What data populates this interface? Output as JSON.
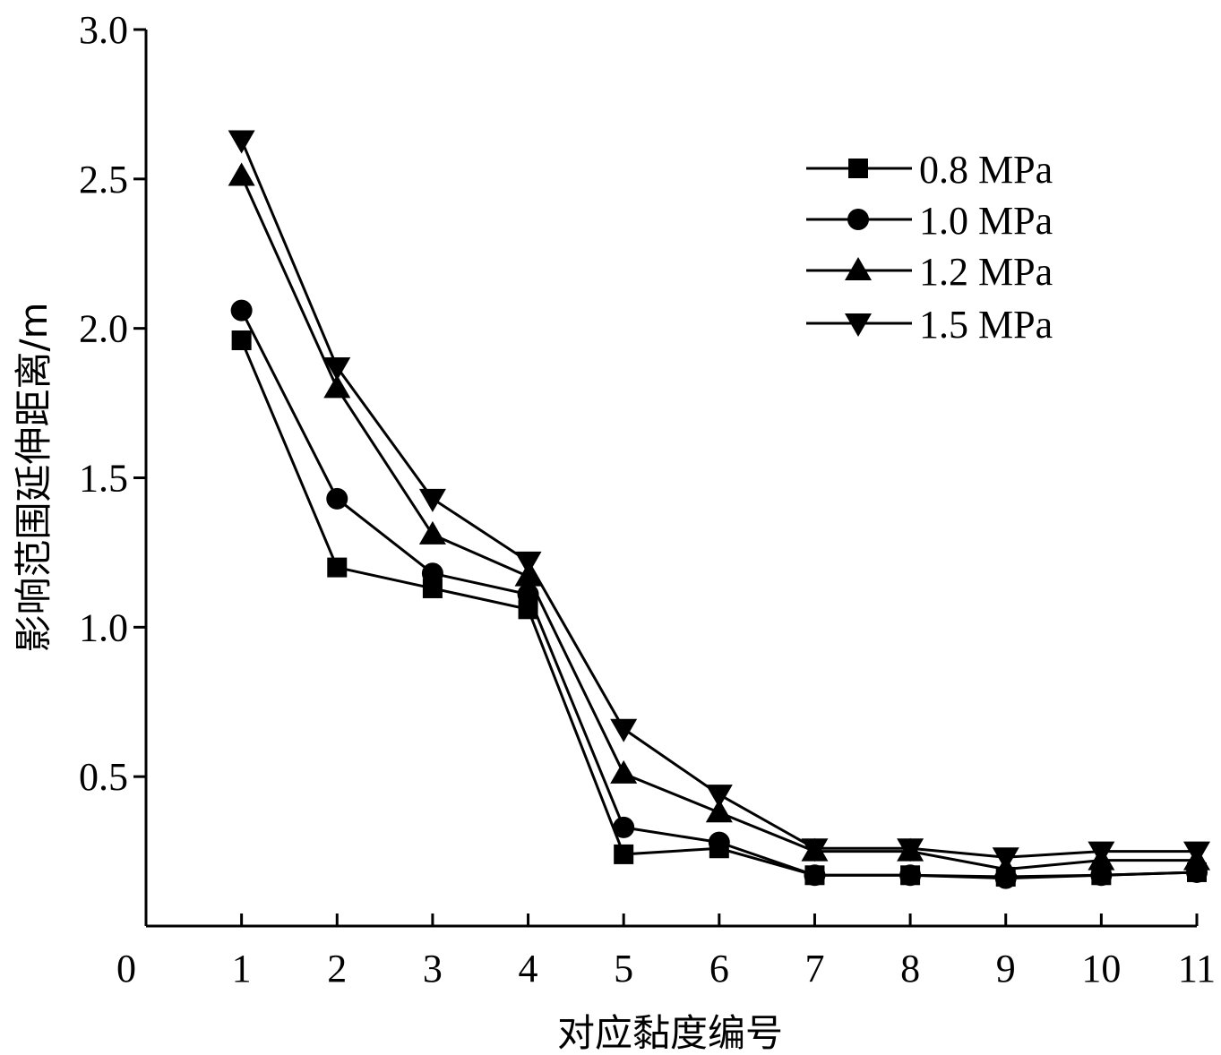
{
  "chart_data": {
    "type": "line",
    "title": "",
    "xlabel": "对应黏度编号",
    "ylabel": "影响范围延伸距离/m",
    "xlim": [
      0,
      11
    ],
    "ylim": [
      0,
      3.0
    ],
    "x_ticks": [
      "0",
      "1",
      "2",
      "3",
      "4",
      "5",
      "6",
      "7",
      "8",
      "9",
      "10",
      "11"
    ],
    "y_ticks": [
      "0.5",
      "1.0",
      "1.5",
      "2.0",
      "2.5",
      "3.0"
    ],
    "grid": false,
    "legend_position": "top-right",
    "x": [
      1,
      2,
      3,
      4,
      5,
      6,
      7,
      8,
      9,
      10,
      11
    ],
    "series": [
      {
        "name": "0.8 MPa",
        "marker": "square",
        "values": [
          1.96,
          1.2,
          1.13,
          1.06,
          0.24,
          0.26,
          0.17,
          0.17,
          0.165,
          0.17,
          0.18
        ]
      },
      {
        "name": "1.0 MPa",
        "marker": "circle",
        "values": [
          2.06,
          1.43,
          1.18,
          1.11,
          0.33,
          0.28,
          0.17,
          0.17,
          0.16,
          0.17,
          0.18
        ]
      },
      {
        "name": "1.2 MPa",
        "marker": "triangle-up",
        "values": [
          2.51,
          1.8,
          1.31,
          1.17,
          0.51,
          0.38,
          0.25,
          0.25,
          0.19,
          0.22,
          0.22
        ]
      },
      {
        "name": "1.5 MPa",
        "marker": "triangle-down",
        "values": [
          2.63,
          1.87,
          1.43,
          1.22,
          0.66,
          0.44,
          0.26,
          0.26,
          0.23,
          0.25,
          0.25
        ]
      }
    ]
  }
}
